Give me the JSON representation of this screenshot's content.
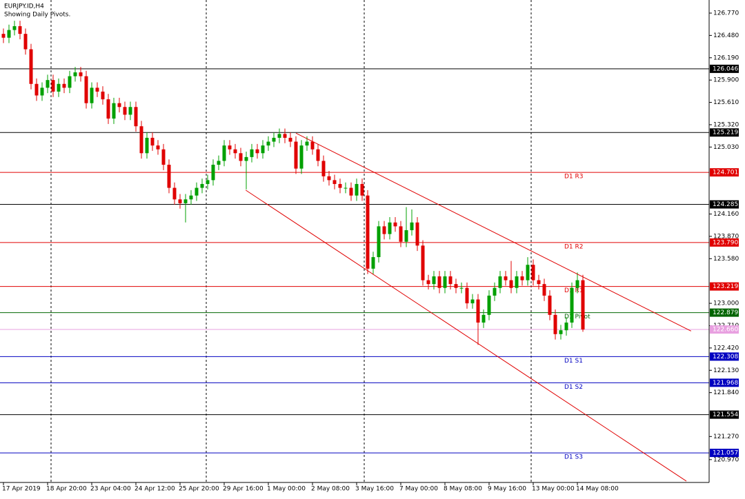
{
  "chart_data": {
    "type": "candlestick",
    "title": "EURJPY.ID,H4",
    "subtitle": "Showing Daily Pivots.",
    "categories": [
      "17 Apr 2019",
      null,
      null,
      null,
      null,
      null,
      null,
      null,
      "18 Apr 20:00",
      null,
      null,
      null,
      null,
      null,
      null,
      null,
      "23 Apr 04:00",
      null,
      null,
      null,
      null,
      null,
      null,
      null,
      "24 Apr 12:00",
      null,
      null,
      null,
      null,
      null,
      null,
      null,
      "25 Apr 20:00",
      null,
      null,
      null,
      null,
      null,
      null,
      null,
      "29 Apr 16:00",
      null,
      null,
      null,
      null,
      null,
      null,
      null,
      "1 May 00:00",
      null,
      null,
      null,
      null,
      null,
      null,
      null,
      "2 May 08:00",
      null,
      null,
      null,
      null,
      null,
      null,
      null,
      "3 May 16:00",
      null,
      null,
      null,
      null,
      null,
      null,
      null,
      "7 May 00:00",
      null,
      null,
      null,
      null,
      null,
      null,
      null,
      "8 May 08:00",
      null,
      null,
      null,
      null,
      null,
      null,
      null,
      "9 May 16:00",
      null,
      null,
      null,
      null,
      null,
      null,
      null,
      "13 May 00:00",
      null,
      null,
      null,
      null,
      null,
      null,
      null,
      "14 May 08:00",
      null
    ],
    "open": [
      126.5,
      126.45,
      126.55,
      126.6,
      126.5,
      126.3,
      125.85,
      125.7,
      125.8,
      125.9,
      125.75,
      125.85,
      125.8,
      125.95,
      126.0,
      125.95,
      125.6,
      125.8,
      125.75,
      125.65,
      125.4,
      125.6,
      125.55,
      125.45,
      125.55,
      125.3,
      124.95,
      125.15,
      125.05,
      125.0,
      124.8,
      124.5,
      124.35,
      124.3,
      124.35,
      124.4,
      124.5,
      124.55,
      124.6,
      124.8,
      124.85,
      125.05,
      125.0,
      124.95,
      124.85,
      124.9,
      125.0,
      124.95,
      125.05,
      125.1,
      125.15,
      125.2,
      125.15,
      125.1,
      124.75,
      125.05,
      125.1,
      125.0,
      124.85,
      124.65,
      124.6,
      124.55,
      124.5,
      124.5,
      124.4,
      124.55,
      124.4,
      123.45,
      123.6,
      124.0,
      123.9,
      124.05,
      124.0,
      123.8,
      123.95,
      124.05,
      123.75,
      123.3,
      123.25,
      123.35,
      123.2,
      123.35,
      123.25,
      123.2,
      123.2,
      123.0,
      123.05,
      122.75,
      122.85,
      123.1,
      123.2,
      123.35,
      123.3,
      123.2,
      123.35,
      123.3,
      123.5,
      123.3,
      123.25,
      123.1,
      122.85,
      122.6,
      122.65,
      122.75,
      123.2,
      123.3
    ],
    "high": [
      126.57,
      126.62,
      126.67,
      126.67,
      126.57,
      126.37,
      125.92,
      125.87,
      125.97,
      125.97,
      125.92,
      125.92,
      126.02,
      126.07,
      126.07,
      126.02,
      125.87,
      125.87,
      125.82,
      125.72,
      125.67,
      125.67,
      125.62,
      125.62,
      125.62,
      125.37,
      125.22,
      125.22,
      125.12,
      125.07,
      124.87,
      124.57,
      124.42,
      124.42,
      124.47,
      124.57,
      124.62,
      124.67,
      124.87,
      124.92,
      125.12,
      125.12,
      125.07,
      125.02,
      124.97,
      125.07,
      125.07,
      125.12,
      125.17,
      125.22,
      125.27,
      125.27,
      125.22,
      125.17,
      125.12,
      125.17,
      125.17,
      125.07,
      124.92,
      124.72,
      124.67,
      124.62,
      124.57,
      124.57,
      124.62,
      124.62,
      124.47,
      123.67,
      124.07,
      124.07,
      124.12,
      124.12,
      124.07,
      124.25,
      124.22,
      124.12,
      123.82,
      123.37,
      123.42,
      123.42,
      123.42,
      123.42,
      123.32,
      123.27,
      123.27,
      123.12,
      123.12,
      122.92,
      123.17,
      123.27,
      123.42,
      123.42,
      123.55,
      123.42,
      123.42,
      123.6,
      123.57,
      123.37,
      123.32,
      123.17,
      122.92,
      122.72,
      122.82,
      123.27,
      123.4,
      123.37
    ],
    "low": [
      126.38,
      126.38,
      126.48,
      126.43,
      126.23,
      125.78,
      125.63,
      125.63,
      125.73,
      125.68,
      125.68,
      125.73,
      125.73,
      125.88,
      125.88,
      125.53,
      125.53,
      125.68,
      125.58,
      125.33,
      125.33,
      125.48,
      125.38,
      125.38,
      125.23,
      124.88,
      124.88,
      124.98,
      124.93,
      124.73,
      124.43,
      124.28,
      124.23,
      124.05,
      124.28,
      124.33,
      124.43,
      124.48,
      124.53,
      124.73,
      124.78,
      124.93,
      124.88,
      124.78,
      124.48,
      124.83,
      124.88,
      124.88,
      124.98,
      125.03,
      125.08,
      125.08,
      125.03,
      124.68,
      124.68,
      124.98,
      124.93,
      124.78,
      124.58,
      124.53,
      124.48,
      124.43,
      124.43,
      124.33,
      124.33,
      124.33,
      123.38,
      123.38,
      123.53,
      123.83,
      123.83,
      123.93,
      123.73,
      123.73,
      123.88,
      123.68,
      123.23,
      123.18,
      123.18,
      123.13,
      123.13,
      123.18,
      123.13,
      123.13,
      122.93,
      122.93,
      122.46,
      122.68,
      122.78,
      123.03,
      123.13,
      123.23,
      123.13,
      123.13,
      123.23,
      123.23,
      123.23,
      123.18,
      123.03,
      122.78,
      122.53,
      122.53,
      122.58,
      122.68,
      123.13,
      122.63
    ],
    "close": [
      126.45,
      126.55,
      126.6,
      126.5,
      126.3,
      125.85,
      125.7,
      125.8,
      125.9,
      125.75,
      125.85,
      125.8,
      125.95,
      126.0,
      125.95,
      125.6,
      125.8,
      125.75,
      125.65,
      125.4,
      125.6,
      125.55,
      125.45,
      125.55,
      125.3,
      124.95,
      125.15,
      125.05,
      125.0,
      124.8,
      124.5,
      124.35,
      124.3,
      124.35,
      124.4,
      124.5,
      124.55,
      124.6,
      124.8,
      124.85,
      125.05,
      125.0,
      124.95,
      124.85,
      124.9,
      125.0,
      124.95,
      125.05,
      125.1,
      125.15,
      125.2,
      125.15,
      125.1,
      124.75,
      125.05,
      125.1,
      125.0,
      124.85,
      124.65,
      124.6,
      124.55,
      124.5,
      124.5,
      124.4,
      124.55,
      124.4,
      123.45,
      123.6,
      124.0,
      123.9,
      124.05,
      124.0,
      123.8,
      123.95,
      124.05,
      123.75,
      123.3,
      123.25,
      123.35,
      123.2,
      123.35,
      123.25,
      123.2,
      123.2,
      123.0,
      123.05,
      122.75,
      122.85,
      123.1,
      123.2,
      123.35,
      123.3,
      123.2,
      123.35,
      123.3,
      123.5,
      123.3,
      123.25,
      123.1,
      122.85,
      122.6,
      122.65,
      122.75,
      123.2,
      123.3,
      122.66
    ],
    "up_color": "#00a000",
    "down_color": "#e00000",
    "ylim": [
      120.673,
      126.94
    ],
    "yticks": [
      {
        "value": 126.77,
        "label": "126.770"
      },
      {
        "value": 126.48,
        "label": "126.480"
      },
      {
        "value": 126.19,
        "label": "126.190"
      },
      {
        "value": 125.9,
        "label": "125.900"
      },
      {
        "value": 125.61,
        "label": "125.610"
      },
      {
        "value": 125.32,
        "label": "125.320"
      },
      {
        "value": 125.03,
        "label": "125.030"
      },
      {
        "value": 124.16,
        "label": "124.160"
      },
      {
        "value": 123.87,
        "label": "123.870"
      },
      {
        "value": 123.58,
        "label": "123.580"
      },
      {
        "value": 123.0,
        "label": "123.000"
      },
      {
        "value": 122.71,
        "label": "122.710"
      },
      {
        "value": 122.42,
        "label": "122.420"
      },
      {
        "value": 122.13,
        "label": "122.130"
      },
      {
        "value": 121.84,
        "label": "121.840"
      },
      {
        "value": 121.27,
        "label": "121.270"
      },
      {
        "value": 120.97,
        "label": "120.970"
      }
    ],
    "levels": [
      {
        "value": 126.046,
        "label": "126.046",
        "color": "#000000"
      },
      {
        "value": 125.219,
        "label": "125.219",
        "color": "#000000"
      },
      {
        "value": 124.701,
        "label": "124.701",
        "color": "#e00000",
        "name": "D1 R3"
      },
      {
        "value": 124.285,
        "label": "124.285",
        "color": "#000000"
      },
      {
        "value": 123.79,
        "label": "123.790",
        "color": "#e00000",
        "name": "D1 R2"
      },
      {
        "value": 123.219,
        "label": "123.219",
        "color": "#e00000",
        "name": "D1 R1"
      },
      {
        "value": 122.879,
        "label": "122.879",
        "color": "#006400",
        "name": "D1 Pivot"
      },
      {
        "value": 122.66,
        "label": "122.660",
        "color": "#e8a0e0"
      },
      {
        "value": 122.308,
        "label": "122.308",
        "color": "#0000c0",
        "name": "D1 S1"
      },
      {
        "value": 121.968,
        "label": "121.968",
        "color": "#0000c0",
        "name": "D1 S2"
      },
      {
        "value": 121.554,
        "label": "121.554",
        "color": "#000000"
      },
      {
        "value": 121.057,
        "label": "121.057",
        "color": "#0000c0",
        "name": "D1 S3"
      }
    ],
    "trendlines": [
      {
        "x": [
          53,
          124.6
        ],
        "y": [
          125.21,
          122.64
        ],
        "color": "#e00000"
      },
      {
        "x": [
          43.9,
          123.75
        ],
        "y": [
          124.47,
          120.69
        ],
        "color": "#e00000"
      }
    ]
  }
}
